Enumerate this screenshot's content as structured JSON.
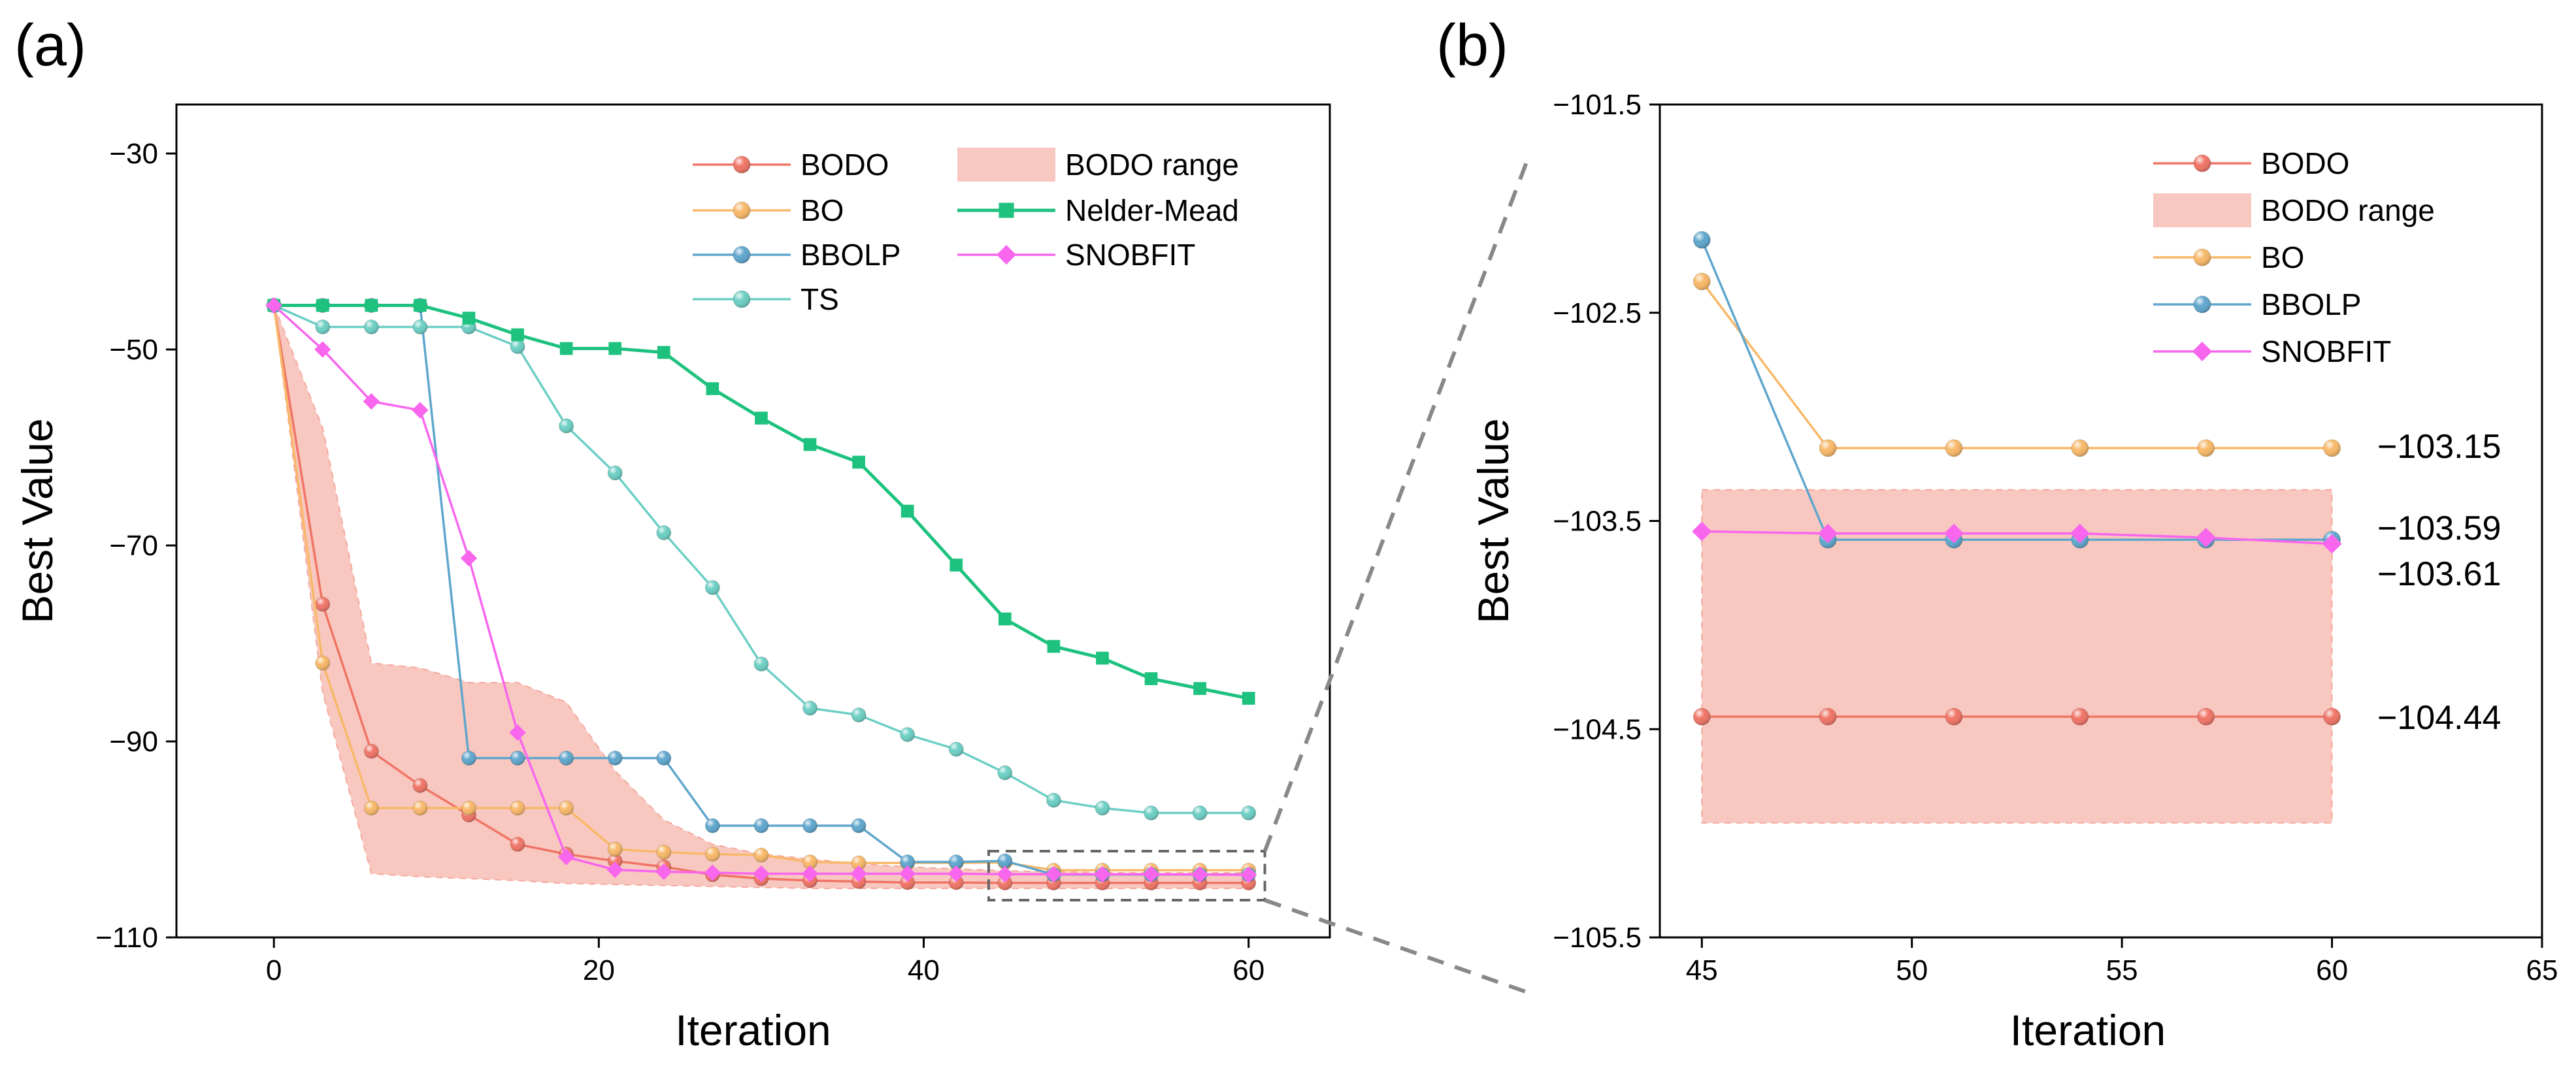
{
  "chart_data": [
    {
      "panel_label": "(a)",
      "type": "line",
      "xlabel": "Iteration",
      "ylabel": "Best Value",
      "xlim": [
        -6,
        65
      ],
      "ylim": [
        -110,
        -25
      ],
      "xticks": [
        0,
        20,
        40,
        60
      ],
      "yticks": [
        -30,
        -50,
        -70,
        -90,
        -110
      ],
      "legend_position": "top-right",
      "range_band": {
        "name": "BODO range",
        "color": "#f8c8c0",
        "x": [
          0,
          3,
          6,
          9,
          12,
          15,
          18,
          21,
          24,
          27,
          30,
          33,
          36,
          39,
          42,
          45,
          48,
          51,
          54,
          57,
          60
        ],
        "lower": [
          -45.5,
          -85,
          -103.5,
          -103.8,
          -104,
          -104.2,
          -104.5,
          -104.6,
          -104.7,
          -104.8,
          -104.9,
          -105,
          -105,
          -105,
          -105,
          -105,
          -105,
          -105,
          -105,
          -105,
          -105
        ],
        "upper": [
          -45.5,
          -58,
          -82,
          -82.5,
          -84,
          -84,
          -86,
          -93,
          -98,
          -100.5,
          -101.5,
          -102,
          -102.5,
          -102.8,
          -103,
          -103.2,
          -103.3,
          -103.4,
          -103.4,
          -103.4,
          -103.4
        ]
      },
      "series": [
        {
          "name": "BODO",
          "color": "#f07466",
          "marker": "circle",
          "x": [
            0,
            3,
            6,
            9,
            12,
            15,
            18,
            21,
            24,
            27,
            30,
            33,
            36,
            39,
            42,
            45,
            48,
            51,
            54,
            57,
            60
          ],
          "values": [
            -45.5,
            -76,
            -91,
            -94.5,
            -97.5,
            -100.5,
            -101.5,
            -102.2,
            -102.8,
            -103.6,
            -104,
            -104.2,
            -104.3,
            -104.4,
            -104.4,
            -104.44,
            -104.44,
            -104.44,
            -104.44,
            -104.44,
            -104.44
          ]
        },
        {
          "name": "BO",
          "color": "#f8b868",
          "marker": "circle",
          "x": [
            0,
            3,
            6,
            9,
            12,
            15,
            18,
            21,
            24,
            27,
            30,
            33,
            36,
            39,
            42,
            45,
            48,
            51,
            54,
            57,
            60
          ],
          "values": [
            -45.5,
            -82,
            -96.8,
            -96.8,
            -96.8,
            -96.8,
            -96.8,
            -101,
            -101.3,
            -101.5,
            -101.6,
            -102.3,
            -102.4,
            -102.4,
            -102.4,
            -102.35,
            -103.15,
            -103.15,
            -103.15,
            -103.15,
            -103.15
          ]
        },
        {
          "name": "BBOLP",
          "color": "#5fa6cd",
          "marker": "circle",
          "x": [
            0,
            3,
            6,
            9,
            12,
            15,
            18,
            21,
            24,
            27,
            30,
            33,
            36,
            39,
            42,
            45,
            48,
            51,
            54,
            57,
            60
          ],
          "values": [
            -45.5,
            -45.5,
            -45.5,
            -45.5,
            -91.7,
            -91.7,
            -91.7,
            -91.7,
            -91.7,
            -98.6,
            -98.6,
            -98.6,
            -98.6,
            -102.3,
            -102.3,
            -102.2,
            -103.59,
            -103.59,
            -103.59,
            -103.59,
            -103.59
          ]
        },
        {
          "name": "TS",
          "color": "#6ccfc4",
          "marker": "circle",
          "x": [
            0,
            3,
            6,
            9,
            12,
            15,
            18,
            21,
            24,
            27,
            30,
            33,
            36,
            39,
            42,
            45,
            48,
            51,
            54,
            57,
            60
          ],
          "values": [
            -45.5,
            -47.7,
            -47.7,
            -47.7,
            -47.7,
            -49.7,
            -57.8,
            -62.6,
            -68.7,
            -74.3,
            -82.1,
            -86.6,
            -87.3,
            -89.3,
            -90.8,
            -93.2,
            -96,
            -96.8,
            -97.3,
            -97.3,
            -97.3
          ]
        },
        {
          "name": "Nelder-Mead",
          "color": "#1ec27e",
          "marker": "square",
          "x": [
            0,
            3,
            6,
            9,
            12,
            15,
            18,
            21,
            24,
            27,
            30,
            33,
            36,
            39,
            42,
            45,
            48,
            51,
            54,
            57,
            60
          ],
          "values": [
            -45.5,
            -45.5,
            -45.5,
            -45.5,
            -46.8,
            -48.5,
            -49.9,
            -49.9,
            -50.3,
            -54,
            -57,
            -59.7,
            -61.5,
            -66.5,
            -72,
            -77.5,
            -80.3,
            -81.5,
            -83.6,
            -84.6,
            -85.6
          ]
        },
        {
          "name": "SNOBFIT",
          "color": "#f866ee",
          "marker": "diamond",
          "x": [
            0,
            3,
            6,
            9,
            12,
            15,
            18,
            21,
            24,
            27,
            30,
            33,
            36,
            39,
            42,
            45,
            48,
            51,
            54,
            57,
            60
          ],
          "values": [
            -45.5,
            -50,
            -55.3,
            -56.2,
            -71.3,
            -89.1,
            -101.8,
            -103.1,
            -103.3,
            -103.4,
            -103.5,
            -103.5,
            -103.5,
            -103.5,
            -103.5,
            -103.55,
            -103.56,
            -103.56,
            -103.56,
            -103.58,
            -103.61
          ]
        }
      ],
      "legend_entries": [
        "BODO",
        "BODO range",
        "BO",
        "Nelder-Mead",
        "BBOLP",
        "SNOBFIT",
        "TS"
      ],
      "zoom_box": {
        "x_range": [
          44,
          61
        ],
        "y_range": [
          -106.2,
          -101.2
        ]
      }
    },
    {
      "panel_label": "(b)",
      "type": "line",
      "xlabel": "Iteration",
      "ylabel": "Best Value",
      "xlim": [
        44,
        65
      ],
      "ylim": [
        -105.5,
        -101.5
      ],
      "xticks": [
        45,
        50,
        55,
        60,
        65
      ],
      "yticks": [
        -101.5,
        -102.5,
        -103.5,
        -104.5,
        -105.5
      ],
      "legend_position": "top-right",
      "range_band": {
        "name": "BODO range",
        "color": "#f8c8c0",
        "x_range": [
          45,
          60
        ],
        "lower": -104.95,
        "upper": -103.35
      },
      "series": [
        {
          "name": "BODO",
          "color": "#f07466",
          "marker": "circle",
          "x": [
            45,
            48,
            51,
            54,
            57,
            60
          ],
          "values": [
            -104.44,
            -104.44,
            -104.44,
            -104.44,
            -104.44,
            -104.44
          ]
        },
        {
          "name": "BO",
          "color": "#f8b868",
          "marker": "circle",
          "x": [
            45,
            48,
            51,
            54,
            57,
            60
          ],
          "values": [
            -102.35,
            -103.15,
            -103.15,
            -103.15,
            -103.15,
            -103.15
          ]
        },
        {
          "name": "BBOLP",
          "color": "#5fa6cd",
          "marker": "circle",
          "x": [
            45,
            48,
            51,
            54,
            57,
            60
          ],
          "values": [
            -102.15,
            -103.59,
            -103.59,
            -103.59,
            -103.59,
            -103.59
          ]
        },
        {
          "name": "SNOBFIT",
          "color": "#f866ee",
          "marker": "diamond",
          "x": [
            45,
            48,
            51,
            54,
            57,
            60
          ],
          "values": [
            -103.55,
            -103.56,
            -103.56,
            -103.56,
            -103.58,
            -103.61
          ]
        }
      ],
      "legend_entries": [
        "BODO",
        "BODO range",
        "BO",
        "BBOLP",
        "SNOBFIT"
      ],
      "end_labels": [
        {
          "text": "−103.15",
          "value": -103.15,
          "color": "#f8b868"
        },
        {
          "text": "−103.59",
          "value": -103.59,
          "color": "#5fa6cd"
        },
        {
          "text": "−103.61",
          "value": -103.61,
          "color": "#f866ee"
        },
        {
          "text": "−104.44",
          "value": -104.44,
          "color": "#f07466"
        }
      ]
    }
  ]
}
